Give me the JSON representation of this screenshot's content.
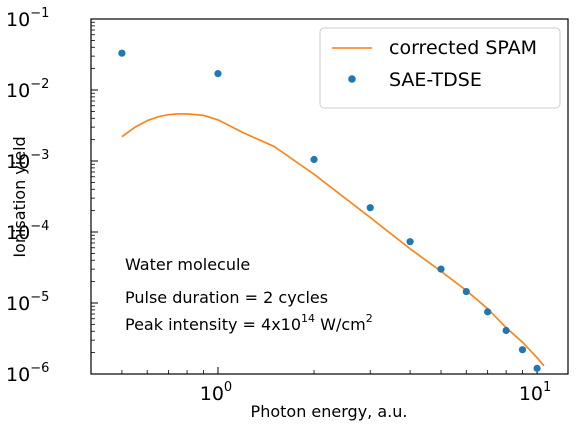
{
  "chart_data": {
    "type": "line",
    "title": "",
    "xlabel": "Photon energy, a.u.",
    "ylabel": "Ionisation yield",
    "xscale": "log",
    "yscale": "log",
    "xlim": [
      0.4,
      12.5
    ],
    "ylim": [
      1e-06,
      0.1
    ],
    "grid": false,
    "legend_position": "top-right",
    "x_ticks": [
      {
        "value": 1,
        "label": "10",
        "exp": "0"
      },
      {
        "value": 10,
        "label": "10",
        "exp": "1"
      }
    ],
    "y_ticks": [
      {
        "value": 1e-06,
        "label": "10",
        "exp": "−6"
      },
      {
        "value": 1e-05,
        "label": "10",
        "exp": "−5"
      },
      {
        "value": 0.0001,
        "label": "10",
        "exp": "−4"
      },
      {
        "value": 0.001,
        "label": "10",
        "exp": "−3"
      },
      {
        "value": 0.01,
        "label": "10",
        "exp": "−2"
      },
      {
        "value": 0.1,
        "label": "10",
        "exp": "−1"
      }
    ],
    "series": [
      {
        "name": "corrected SPAM",
        "kind": "line",
        "color": "#ff7f0e",
        "x": [
          0.5,
          0.55,
          0.6,
          0.65,
          0.7,
          0.75,
          0.8,
          0.9,
          1.0,
          1.2,
          1.5,
          2,
          3,
          4,
          5,
          6,
          7,
          8,
          9,
          10,
          10.5
        ],
        "y": [
          0.0022,
          0.003,
          0.0037,
          0.0042,
          0.0045,
          0.0046,
          0.0046,
          0.0044,
          0.0038,
          0.0025,
          0.0016,
          0.00065,
          0.00016,
          5.8e-05,
          2.8e-05,
          1.5e-05,
          8.3e-06,
          4.5e-06,
          2.8e-06,
          1.7e-06,
          1.3e-06
        ]
      },
      {
        "name": "SAE-TDSE",
        "kind": "scatter",
        "color": "#1f77b4",
        "x": [
          0.5,
          1,
          2,
          3,
          4,
          5,
          6,
          7,
          8,
          9,
          10
        ],
        "y": [
          0.033,
          0.017,
          0.00105,
          0.00022,
          7.3e-05,
          3e-05,
          1.45e-05,
          7.5e-06,
          4.1e-06,
          2.2e-06,
          1.2e-06
        ]
      }
    ],
    "annotations": {
      "molecule": "Water molecule",
      "pulse": "Pulse duration = 2 cycles",
      "intensity_prefix": "Peak intensity = 4x10",
      "intensity_exp": "14",
      "intensity_unit": " W/cm",
      "intensity_unit_exp": "2"
    }
  }
}
